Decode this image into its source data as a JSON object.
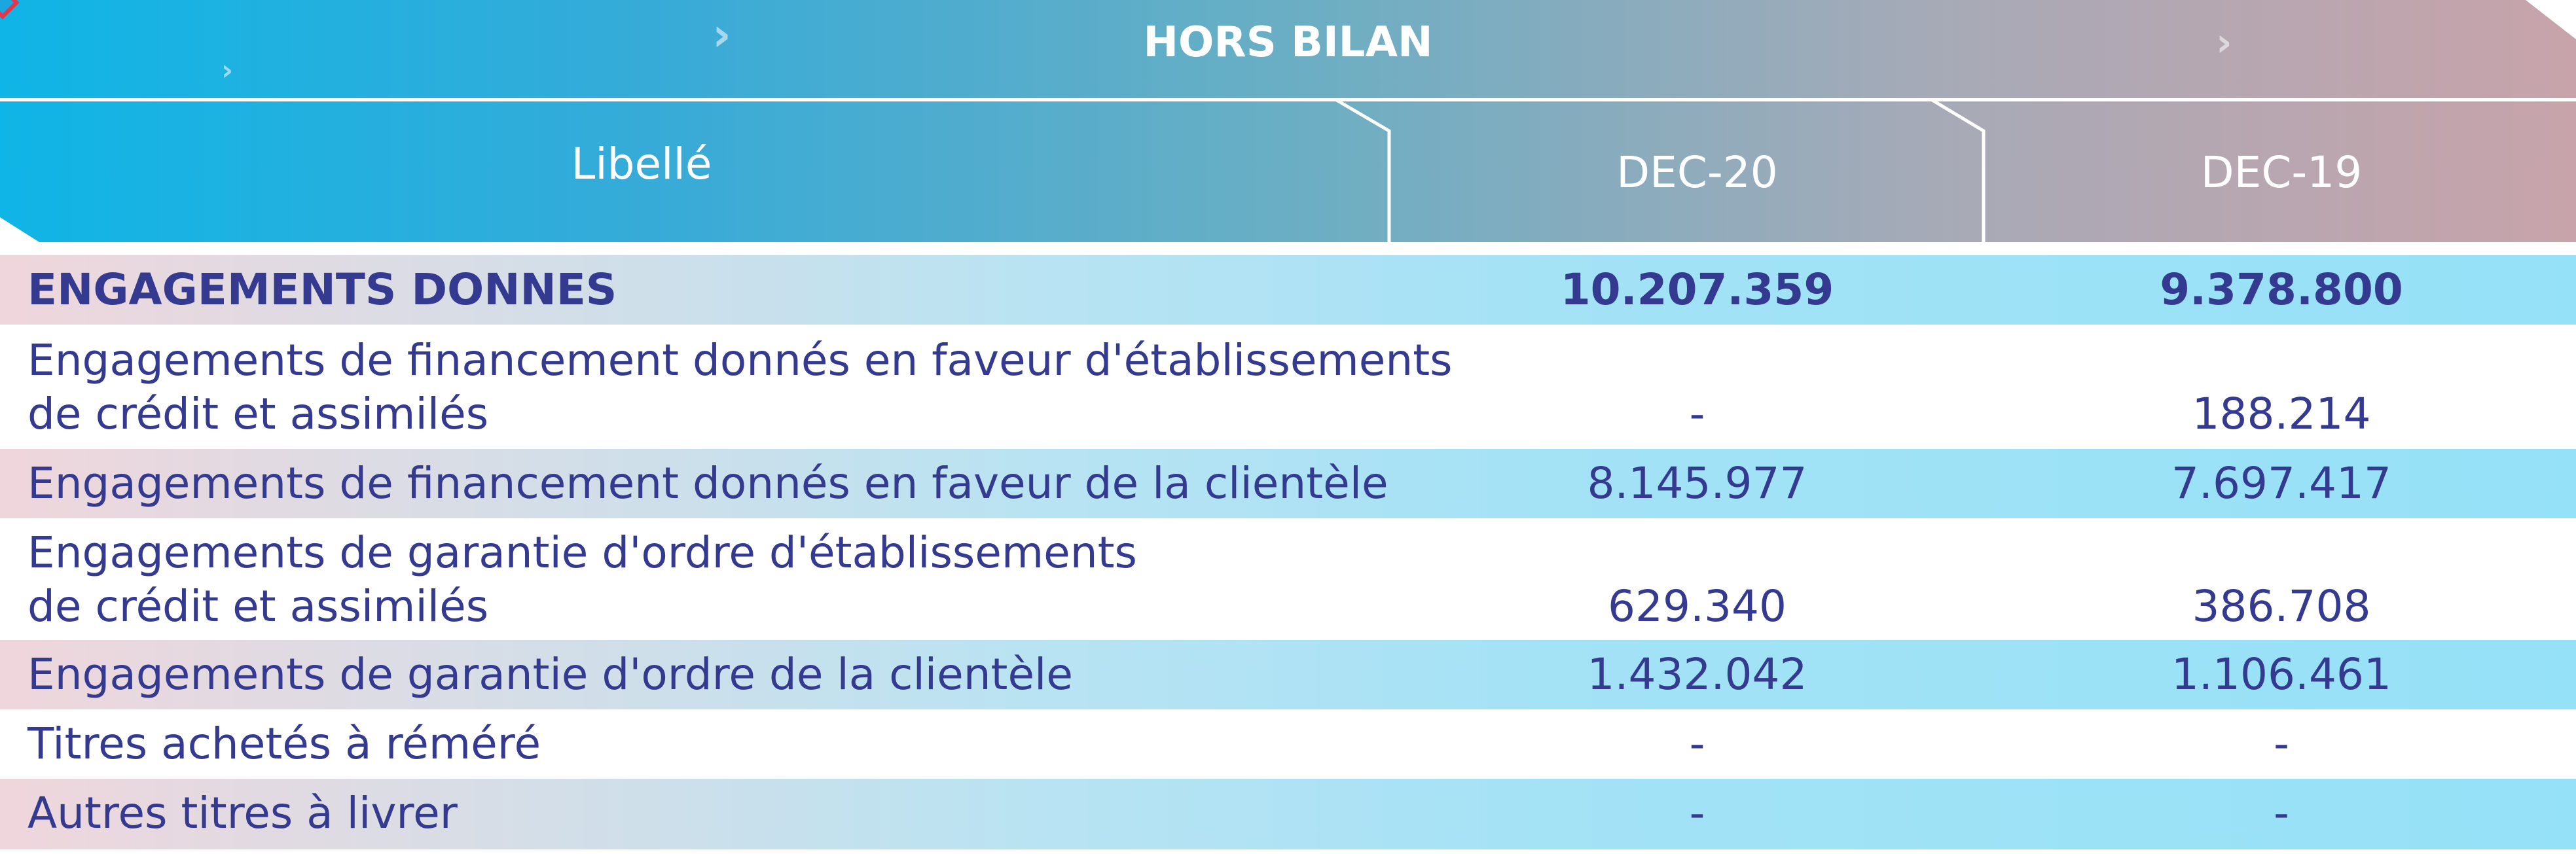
{
  "header": {
    "title": "HORS BILAN",
    "columns": [
      "Libellé",
      "DEC-20",
      "DEC-19"
    ]
  },
  "rows": [
    {
      "label_lines": [
        "ENGAGEMENTS DONNES"
      ],
      "dec20": "10.207.359",
      "dec19": "9.378.800",
      "bold": true,
      "shaded": true
    },
    {
      "label_lines": [
        "Engagements de financement donnés en faveur d'établissements",
        "de crédit et assimilés"
      ],
      "dec20": "-",
      "dec19": "188.214",
      "bold": false,
      "shaded": false
    },
    {
      "label_lines": [
        "Engagements de financement donnés en faveur de la clientèle"
      ],
      "dec20": "8.145.977",
      "dec19": "7.697.417",
      "bold": false,
      "shaded": true
    },
    {
      "label_lines": [
        "Engagements de garantie d'ordre d'établissements",
        "de crédit et assimilés"
      ],
      "dec20": "629.340",
      "dec19": "386.708",
      "bold": false,
      "shaded": false
    },
    {
      "label_lines": [
        "Engagements de garantie d'ordre de la clientèle"
      ],
      "dec20": "1.432.042",
      "dec19": "1.106.461",
      "bold": false,
      "shaded": true
    },
    {
      "label_lines": [
        "Titres achetés à réméré"
      ],
      "dec20": "-",
      "dec19": "-",
      "bold": false,
      "shaded": false
    },
    {
      "label_lines": [
        "Autres titres à livrer"
      ],
      "dec20": "-",
      "dec19": "-",
      "bold": false,
      "shaded": true
    }
  ]
}
